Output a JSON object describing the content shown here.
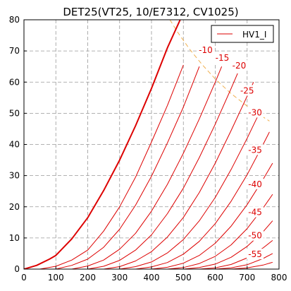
{
  "chart_data": {
    "type": "line",
    "title": "DET25(VT25, 10/E7312, CV1025)",
    "xlabel": "",
    "ylabel": "",
    "xlim": [
      0,
      800
    ],
    "ylim": [
      0,
      80
    ],
    "xticks": [
      "0",
      "100",
      "200",
      "300",
      "400",
      "500",
      "600",
      "700",
      "800"
    ],
    "yticks": [
      "0",
      "10",
      "20",
      "30",
      "40",
      "50",
      "60",
      "70",
      "80"
    ],
    "grid": true,
    "legend": {
      "placement": "top-right",
      "entries": [
        "HV1_I"
      ]
    },
    "colors": {
      "curve": "#dd0000",
      "dissipation": "#f0b050",
      "grid": "#999999",
      "label": "#dd0000"
    },
    "dissipation_curve": {
      "x": [
        458,
        480,
        520,
        560,
        600,
        650,
        700,
        750,
        770
      ],
      "y": [
        80,
        76.3,
        70.5,
        65.5,
        61,
        56.3,
        52.3,
        48.8,
        47.5
      ]
    },
    "series": [
      {
        "name": "HV1_I",
        "grid_volts": 0,
        "x": [
          0,
          40,
          80,
          100,
          150,
          200,
          250,
          300,
          350,
          400,
          450,
          490
        ],
        "y": [
          0,
          1.2,
          3.2,
          4.4,
          9.7,
          16.5,
          25.2,
          35,
          46,
          58,
          71,
          80
        ],
        "bold": true
      },
      {
        "grid_volts": -5,
        "label": "",
        "x": [
          50,
          100,
          150,
          200,
          250,
          300,
          350,
          400,
          450,
          500
        ],
        "y": [
          0,
          0.9,
          2.9,
          6.1,
          12.2,
          20,
          29.5,
          40.8,
          52.5,
          65.5
        ],
        "bold": false
      },
      {
        "grid_volts": -10,
        "label": "-10",
        "x": [
          100,
          150,
          200,
          250,
          300,
          350,
          400,
          450,
          500,
          550
        ],
        "y": [
          0,
          1.2,
          3.2,
          7,
          12.8,
          20.5,
          29.8,
          40.5,
          52,
          65
        ],
        "bold": false
      },
      {
        "grid_volts": -15,
        "label": "-15",
        "x": [
          150,
          200,
          250,
          300,
          350,
          400,
          450,
          500,
          550,
          600,
          620
        ],
        "y": [
          0,
          1,
          2.9,
          6.4,
          11.5,
          18.6,
          27.2,
          37.2,
          48.2,
          60,
          65
        ],
        "bold": false
      },
      {
        "grid_volts": -20,
        "label": "-20",
        "x": [
          200,
          250,
          300,
          350,
          400,
          450,
          500,
          550,
          600,
          650,
          670
        ],
        "y": [
          0,
          0.9,
          2.8,
          6.1,
          11,
          17.8,
          26,
          35.8,
          46.5,
          58,
          62.8
        ],
        "bold": false
      },
      {
        "grid_volts": -25,
        "label": "-25",
        "x": [
          250,
          300,
          350,
          400,
          450,
          500,
          550,
          600,
          650,
          700,
          720
        ],
        "y": [
          0,
          0.8,
          2.6,
          5.6,
          10.3,
          16.6,
          24.6,
          34,
          44.5,
          55.5,
          60
        ],
        "bold": false
      },
      {
        "grid_volts": -30,
        "label": "-30",
        "x": [
          300,
          350,
          400,
          450,
          500,
          550,
          600,
          650,
          700,
          740
        ],
        "y": [
          0,
          0.8,
          2.3,
          5.2,
          9.5,
          15.5,
          23,
          32,
          42,
          50.5
        ],
        "bold": false
      },
      {
        "grid_volts": -35,
        "label": "-35",
        "x": [
          350,
          400,
          450,
          500,
          550,
          600,
          650,
          700,
          750,
          770
        ],
        "y": [
          0,
          0.7,
          2.1,
          4.8,
          8.9,
          14.6,
          21.8,
          30.3,
          40,
          44
        ],
        "bold": false
      },
      {
        "grid_volts": -40,
        "label": "-40",
        "x": [
          400,
          450,
          500,
          550,
          600,
          650,
          700,
          750,
          780
        ],
        "y": [
          0,
          0.6,
          1.9,
          4.4,
          8.3,
          13.8,
          20.7,
          28.8,
          34
        ],
        "bold": false
      },
      {
        "grid_volts": -45,
        "label": "-45",
        "x": [
          450,
          500,
          550,
          600,
          650,
          700,
          750,
          780
        ],
        "y": [
          0,
          0.5,
          1.8,
          4.1,
          7.8,
          13,
          19.6,
          24
        ],
        "bold": false
      },
      {
        "grid_volts": -50,
        "label": "-50",
        "x": [
          500,
          550,
          600,
          650,
          700,
          750,
          780
        ],
        "y": [
          0,
          0.5,
          1.6,
          3.8,
          7.3,
          12,
          15.5
        ],
        "bold": false
      },
      {
        "grid_volts": -55,
        "label": "-55",
        "x": [
          550,
          600,
          650,
          700,
          750,
          780
        ],
        "y": [
          0,
          0.4,
          1.5,
          3.6,
          6.8,
          9.2
        ],
        "bold": false
      },
      {
        "grid_volts": -60,
        "label": "",
        "x": [
          600,
          650,
          700,
          750,
          780
        ],
        "y": [
          0,
          0.4,
          1.4,
          3.4,
          5
        ],
        "bold": false
      },
      {
        "grid_volts": -65,
        "label": "",
        "x": [
          650,
          700,
          750,
          780
        ],
        "y": [
          0,
          0.4,
          1.3,
          2.2
        ],
        "bold": false
      }
    ],
    "curve_labels": [
      {
        "text": "-10",
        "x": 570,
        "y": 70
      },
      {
        "text": "-15",
        "x": 622,
        "y": 67.5
      },
      {
        "text": "-20",
        "x": 675,
        "y": 65
      },
      {
        "text": "-25",
        "x": 700,
        "y": 57
      },
      {
        "text": "-30",
        "x": 725,
        "y": 50
      },
      {
        "text": "-35",
        "x": 725,
        "y": 38
      },
      {
        "text": "-40",
        "x": 725,
        "y": 27
      },
      {
        "text": "-45",
        "x": 725,
        "y": 18
      },
      {
        "text": "-50",
        "x": 725,
        "y": 10.5
      },
      {
        "text": "-55",
        "x": 725,
        "y": 4.5
      }
    ]
  }
}
